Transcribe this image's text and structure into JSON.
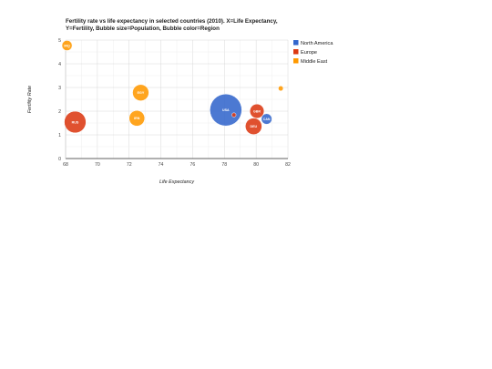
{
  "chart_data": {
    "type": "scatter",
    "subtype": "bubble",
    "title_lines": [
      "Fertility rate vs life expectancy in selected countries (2010). X=Life Expectancy,",
      "Y=Fertility, Bubble size=Population, Bubble color=Region"
    ],
    "xlabel": "Life Expectancy",
    "ylabel": "Fertility Rate",
    "xlim": [
      68,
      82
    ],
    "ylim": [
      0,
      5
    ],
    "xticks": [
      68,
      70,
      72,
      74,
      76,
      78,
      80,
      82
    ],
    "yticks": [
      0,
      1,
      2,
      3,
      4,
      5
    ],
    "grid": true,
    "legend_position": "right",
    "regions": [
      {
        "name": "North America",
        "color": "#3366cc"
      },
      {
        "name": "Europe",
        "color": "#dc3912"
      },
      {
        "name": "Middle East",
        "color": "#ff9900"
      }
    ],
    "points": [
      {
        "label": "CAN",
        "x": 80.66,
        "y": 1.67,
        "population": 33739900,
        "region": "North America"
      },
      {
        "label": "DEU",
        "x": 79.84,
        "y": 1.36,
        "population": 81902307,
        "region": "Europe"
      },
      {
        "label": "DNK",
        "x": 78.6,
        "y": 1.84,
        "population": 5523095,
        "region": "Europe"
      },
      {
        "label": "EGY",
        "x": 72.73,
        "y": 2.78,
        "population": 79716203,
        "region": "Middle East"
      },
      {
        "label": "GBR",
        "x": 80.05,
        "y": 2.0,
        "population": 61801570,
        "region": "Europe"
      },
      {
        "label": "IRN",
        "x": 72.49,
        "y": 1.7,
        "population": 73137148,
        "region": "Middle East"
      },
      {
        "label": "IRQ",
        "x": 68.09,
        "y": 4.77,
        "population": 31090763,
        "region": "Middle East"
      },
      {
        "label": "ISR",
        "x": 81.55,
        "y": 2.96,
        "population": 7485600,
        "region": "Middle East"
      },
      {
        "label": "RUS",
        "x": 68.6,
        "y": 1.54,
        "population": 141850000,
        "region": "Europe"
      },
      {
        "label": "USA",
        "x": 78.09,
        "y": 2.05,
        "population": 307007000,
        "region": "North America"
      }
    ]
  }
}
